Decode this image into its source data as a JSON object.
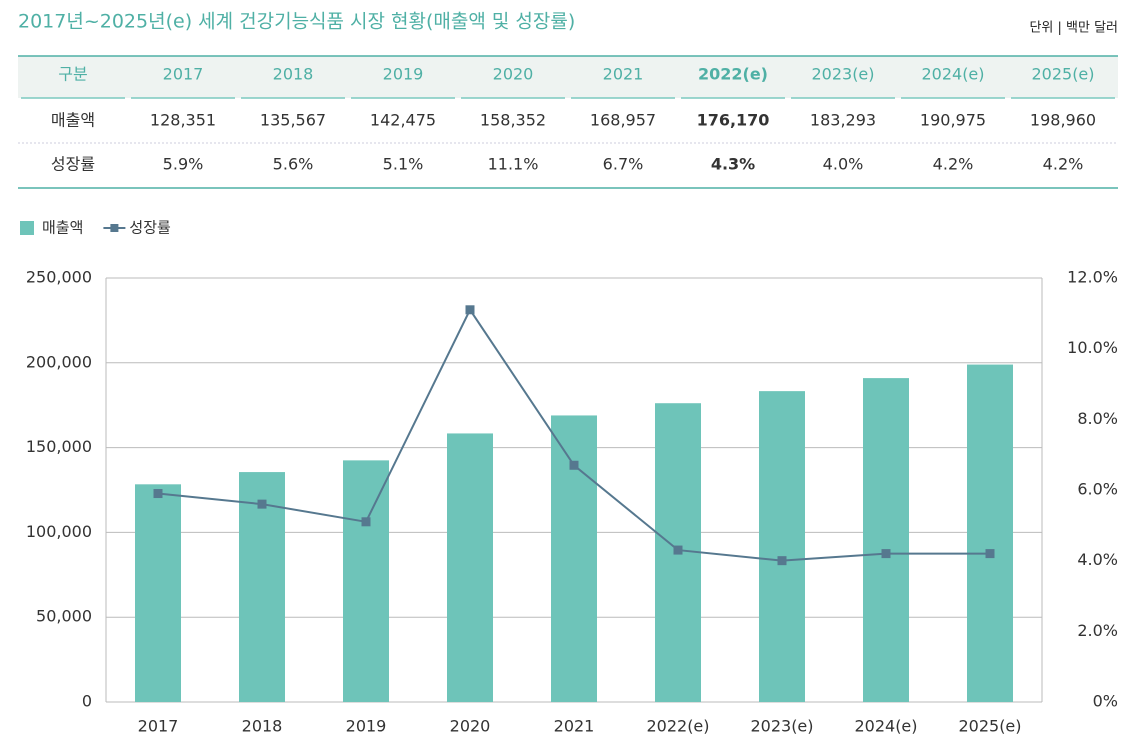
{
  "title": "2017년~2025년(e) 세계 건강기능식품 시장 현황(매출액 및 성장률)",
  "unit": "단위 | 백만 달러",
  "table": {
    "header": [
      "구분",
      "2017",
      "2018",
      "2019",
      "2020",
      "2021",
      "2022(e)",
      "2023(e)",
      "2024(e)",
      "2025(e)"
    ],
    "rows": [
      [
        "매출액",
        "128,351",
        "135,567",
        "142,475",
        "158,352",
        "168,957",
        "176,170",
        "183,293",
        "190,975",
        "198,960"
      ],
      [
        "성장률",
        "5.9%",
        "5.6%",
        "5.1%",
        "11.1%",
        "6.7%",
        "4.3%",
        "4.0%",
        "4.2%",
        "4.2%"
      ]
    ]
  },
  "chart_data": {
    "type": "bar-line",
    "categories": [
      "2017",
      "2018",
      "2019",
      "2020",
      "2021",
      "2022(e)",
      "2023(e)",
      "2024(e)",
      "2025(e)"
    ],
    "series": [
      {
        "name": "매출액",
        "type": "bar",
        "color": "#6ec4b9",
        "values": [
          128351,
          135567,
          142475,
          158352,
          168957,
          176170,
          183293,
          190975,
          198960
        ]
      },
      {
        "name": "성장률",
        "type": "line",
        "axis": "y2",
        "color": "#56788f",
        "values": [
          5.9,
          5.6,
          5.1,
          11.1,
          6.7,
          4.3,
          4.0,
          4.2,
          4.2
        ]
      }
    ],
    "ylim": [
      0,
      250000
    ],
    "yticks": [
      0,
      {
        "value": 50000,
        "label": "50,000"
      },
      {
        "value": 100000,
        "label": "100,000"
      },
      {
        "value": 150000,
        "label": "150,000"
      },
      {
        "value": 200000,
        "label": "200,000"
      },
      {
        "value": 250000,
        "label": "250,000"
      }
    ],
    "y2lim": [
      0,
      12
    ],
    "y2ticks": [
      {
        "value": 0,
        "label": "0%"
      },
      {
        "value": 2,
        "label": "2.0%"
      },
      {
        "value": 4,
        "label": "4.0%"
      },
      {
        "value": 6,
        "label": "6.0%"
      },
      {
        "value": 8,
        "label": "8.0%"
      },
      {
        "value": 10,
        "label": "10.0%"
      },
      {
        "value": 12,
        "label": "12.0%"
      }
    ],
    "grid": true,
    "legend": "top-left"
  }
}
